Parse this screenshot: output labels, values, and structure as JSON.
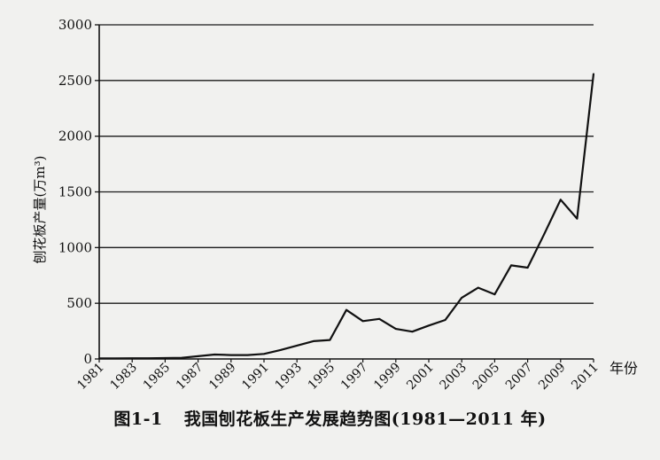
{
  "chart_data": {
    "type": "line",
    "ylabel": "刨花板产量(万m³)",
    "xlabel": "年份",
    "ylim": [
      0,
      3000
    ],
    "yticks": [
      0,
      500,
      1000,
      1500,
      2000,
      2500,
      3000
    ],
    "xticks": [
      "1981",
      "1983",
      "1985",
      "1987",
      "1989",
      "1991",
      "1993",
      "1995",
      "1997",
      "1999",
      "2001",
      "2003",
      "2005",
      "2007",
      "2009",
      "2011"
    ],
    "grid": true,
    "x": [
      1981,
      1982,
      1983,
      1984,
      1985,
      1986,
      1987,
      1988,
      1989,
      1990,
      1991,
      1992,
      1993,
      1994,
      1995,
      1996,
      1997,
      1998,
      1999,
      2000,
      2001,
      2002,
      2003,
      2004,
      2005,
      2006,
      2007,
      2008,
      2009,
      2010,
      2011
    ],
    "values": [
      5,
      5,
      6,
      6,
      8,
      10,
      25,
      40,
      35,
      35,
      45,
      80,
      120,
      160,
      170,
      440,
      340,
      360,
      270,
      245,
      300,
      350,
      550,
      640,
      580,
      840,
      820,
      1120,
      1430,
      1260,
      2560
    ],
    "line_color": "#111111"
  },
  "caption": {
    "figure_number": "图1-1",
    "text": "我国刨花板生产发展趋势图(1981—2011 年)"
  }
}
